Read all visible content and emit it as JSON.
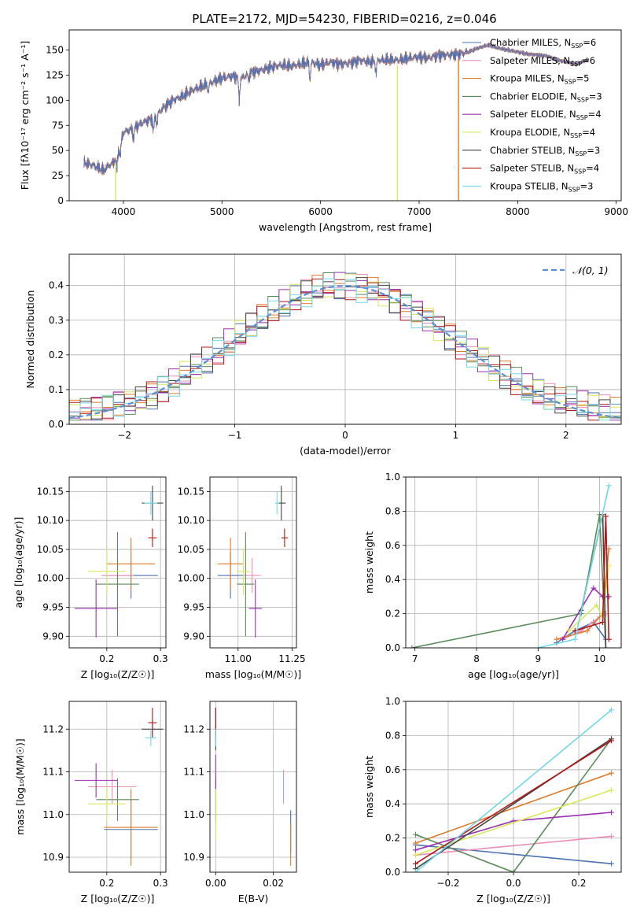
{
  "figure_title": "PLATE=2172, MJD=54230, FIBERID=0216, z=0.046",
  "colors": {
    "Chabrier MILES": "#4c72b0",
    "Salpeter MILES": "#e88fb8",
    "Kroupa MILES": "#e07b2a",
    "Chabrier ELODIE": "#5a8a5a",
    "Salpeter ELODIE": "#9b30b0",
    "Kroupa ELODIE": "#d8e85a",
    "Chabrier STELIB": "#444444",
    "Salpeter STELIB": "#b01818",
    "Kroupa STELIB": "#70d8e8",
    "gaussian": "#5b8fd6"
  },
  "chart_data": [
    {
      "id": "spectrum",
      "type": "line",
      "title": "PLATE=2172, MJD=54230, FIBERID=0216, z=0.046",
      "xlabel": "wavelength [Angstrom, rest frame]",
      "ylabel": "Flux [fλ10⁻¹⁷ erg cm⁻² s⁻¹ A⁻¹]",
      "xlim": [
        3450,
        9050
      ],
      "ylim": [
        0,
        170
      ],
      "xticks": [
        4000,
        5000,
        6000,
        7000,
        8000,
        9000
      ],
      "yticks": [
        0,
        25,
        50,
        75,
        100,
        125,
        150
      ],
      "legend_position": "top-right",
      "legend": [
        "Chabrier MILES, N_SSP=6",
        "Salpeter MILES, N_SSP=6",
        "Kroupa MILES, N_SSP=5",
        "Chabrier ELODIE, N_SSP=3",
        "Salpeter ELODIE, N_SSP=4",
        "Kroupa ELODIE, N_SSP=4",
        "Chabrier STELIB, N_SSP=3",
        "Salpeter STELIB, N_SSP=4",
        "Kroupa STELIB, N_SSP=3"
      ],
      "continuum": [
        [
          3600,
          38
        ],
        [
          3700,
          35
        ],
        [
          3800,
          30
        ],
        [
          3850,
          35
        ],
        [
          3900,
          38
        ],
        [
          3950,
          50
        ],
        [
          4000,
          68
        ],
        [
          4100,
          72
        ],
        [
          4200,
          78
        ],
        [
          4300,
          82
        ],
        [
          4400,
          92
        ],
        [
          4500,
          100
        ],
        [
          4600,
          104
        ],
        [
          4700,
          110
        ],
        [
          4800,
          114
        ],
        [
          4900,
          118
        ],
        [
          5000,
          122
        ],
        [
          5100,
          124
        ],
        [
          5200,
          122
        ],
        [
          5300,
          128
        ],
        [
          5400,
          130
        ],
        [
          5500,
          133
        ],
        [
          5600,
          135
        ],
        [
          5700,
          134
        ],
        [
          5800,
          136
        ],
        [
          5900,
          138
        ],
        [
          6000,
          135
        ],
        [
          6100,
          138
        ],
        [
          6200,
          136
        ],
        [
          6300,
          137
        ],
        [
          6400,
          140
        ],
        [
          6500,
          138
        ],
        [
          6600,
          140
        ],
        [
          6700,
          140
        ],
        [
          6800,
          140
        ],
        [
          6900,
          142
        ],
        [
          7000,
          143
        ],
        [
          7100,
          142
        ],
        [
          7200,
          145
        ],
        [
          7300,
          145
        ],
        [
          7400,
          146
        ],
        [
          7500,
          148
        ],
        [
          7600,
          152
        ],
        [
          7700,
          155
        ],
        [
          7800,
          152
        ],
        [
          7900,
          150
        ],
        [
          8000,
          148
        ],
        [
          8100,
          146
        ],
        [
          8200,
          145
        ],
        [
          8300,
          144
        ],
        [
          8400,
          140
        ],
        [
          8500,
          138
        ],
        [
          8600,
          136
        ],
        [
          8700,
          140
        ]
      ],
      "absorption": [
        [
          3934,
          14
        ],
        [
          3969,
          12
        ],
        [
          4102,
          10
        ],
        [
          4305,
          14
        ],
        [
          4340,
          10
        ],
        [
          4861,
          8
        ],
        [
          5175,
          22
        ],
        [
          5270,
          6
        ],
        [
          5893,
          18
        ],
        [
          6563,
          12
        ]
      ],
      "dropouts": [
        [
          3920,
          "Kroupa ELODIE"
        ],
        [
          6780,
          "Kroupa ELODIE"
        ],
        [
          7400,
          "Kroupa MILES"
        ]
      ]
    },
    {
      "id": "residuals",
      "type": "histogram",
      "xlabel": "(data-model)/error",
      "ylabel": "Normed distribution",
      "xlim": [
        -2.5,
        2.5
      ],
      "ylim": [
        0,
        0.49
      ],
      "xticks": [
        -2,
        -1,
        0,
        1,
        2
      ],
      "yticks": [
        0.0,
        0.1,
        0.2,
        0.3,
        0.4
      ],
      "bin_width": 0.1,
      "legend": [
        "𝒩(0, 1)"
      ],
      "legend_position": "top-right",
      "grid": true
    },
    {
      "id": "age-vs-Z",
      "type": "scatter",
      "xlabel": "Z [log₁₀(Z/Z☉)]",
      "ylabel": "age  [log₁₀(age/yr)]",
      "xlim": [
        0.13,
        0.31
      ],
      "ylim": [
        9.88,
        10.175
      ],
      "xticks": [
        0.2,
        0.3
      ],
      "ytick_labels": [
        "9.90",
        "9.95",
        "10.00",
        "10.05",
        "10.10",
        "10.15"
      ],
      "grid": true,
      "points": [
        {
          "model": "Chabrier MILES",
          "x": 0.245,
          "y": 10.005,
          "xerr": 0.05,
          "yerr": 0.04
        },
        {
          "model": "Salpeter MILES",
          "x": 0.22,
          "y": 10.005,
          "xerr": 0.03,
          "yerr": 0.03
        },
        {
          "model": "Kroupa MILES",
          "x": 0.245,
          "y": 10.025,
          "xerr": 0.045,
          "yerr": 0.045
        },
        {
          "model": "Chabrier ELODIE",
          "x": 0.22,
          "y": 9.99,
          "xerr": 0.04,
          "yerr": 0.09
        },
        {
          "model": "Salpeter ELODIE",
          "x": 0.18,
          "y": 9.948,
          "xerr": 0.04,
          "yerr": 0.05
        },
        {
          "model": "Kroupa ELODIE",
          "x": 0.2,
          "y": 10.012,
          "xerr": 0.035,
          "yerr": 0.04
        },
        {
          "model": "Chabrier STELIB",
          "x": 0.285,
          "y": 10.13,
          "xerr": 0.02,
          "yerr": 0.03
        },
        {
          "model": "Salpeter STELIB",
          "x": 0.285,
          "y": 10.07,
          "xerr": 0.008,
          "yerr": 0.016
        },
        {
          "model": "Kroupa STELIB",
          "x": 0.282,
          "y": 10.13,
          "xerr": 0.012,
          "yerr": 0.02
        }
      ]
    },
    {
      "id": "age-vs-mass",
      "type": "scatter",
      "xlabel": "mass [log₁₀(M/M☉)]",
      "xlim": [
        10.87,
        11.27
      ],
      "ylim": [
        9.88,
        10.175
      ],
      "xticks": [
        11.0,
        11.25
      ],
      "xtick_labels": [
        "11.00",
        "11.25"
      ],
      "ytick_labels": [
        "9.90",
        "9.95",
        "10.00",
        "10.05",
        "10.10",
        "10.15"
      ],
      "grid": true,
      "points": [
        {
          "model": "Chabrier MILES",
          "x": 10.965,
          "y": 10.005,
          "xerr": 0.06,
          "yerr": 0.04
        },
        {
          "model": "Salpeter MILES",
          "x": 11.065,
          "y": 10.005,
          "xerr": 0.04,
          "yerr": 0.03
        },
        {
          "model": "Kroupa MILES",
          "x": 10.965,
          "y": 10.025,
          "xerr": 0.06,
          "yerr": 0.045
        },
        {
          "model": "Chabrier ELODIE",
          "x": 11.035,
          "y": 9.99,
          "xerr": 0.04,
          "yerr": 0.09
        },
        {
          "model": "Salpeter ELODIE",
          "x": 11.08,
          "y": 9.948,
          "xerr": 0.03,
          "yerr": 0.05
        },
        {
          "model": "Kroupa ELODIE",
          "x": 11.025,
          "y": 10.012,
          "xerr": 0.03,
          "yerr": 0.04
        },
        {
          "model": "Chabrier STELIB",
          "x": 11.2,
          "y": 10.13,
          "xerr": 0.02,
          "yerr": 0.03
        },
        {
          "model": "Salpeter STELIB",
          "x": 11.215,
          "y": 10.07,
          "xerr": 0.015,
          "yerr": 0.016
        },
        {
          "model": "Kroupa STELIB",
          "x": 11.18,
          "y": 10.13,
          "xerr": 0.01,
          "yerr": 0.02
        }
      ]
    },
    {
      "id": "mass-weight-vs-age",
      "type": "line",
      "xlabel": "age  [log₁₀(age/yr)]",
      "ylabel": "mass weight",
      "xlim": [
        6.85,
        10.35
      ],
      "ylim": [
        0,
        1.0
      ],
      "xticks": [
        7,
        8,
        9,
        10
      ],
      "yticks": [
        0.0,
        0.2,
        0.4,
        0.6,
        0.8,
        1.0
      ],
      "grid": true,
      "series": [
        {
          "model": "Chabrier ELODIE",
          "x": [
            6.95,
            9.7,
            10.0,
            10.1
          ],
          "y": [
            0.0,
            0.2,
            0.78,
            0.0
          ]
        },
        {
          "model": "Chabrier MILES",
          "x": [
            9.3,
            9.6,
            9.9,
            10.1
          ],
          "y": [
            0.03,
            0.1,
            0.15,
            0.05
          ]
        },
        {
          "model": "Salpeter MILES",
          "x": [
            9.4,
            9.7,
            10.0,
            10.1
          ],
          "y": [
            0.05,
            0.1,
            0.18,
            0.2
          ]
        },
        {
          "model": "Kroupa MILES",
          "x": [
            9.3,
            9.8,
            10.05,
            10.15
          ],
          "y": [
            0.05,
            0.1,
            0.2,
            0.58
          ]
        },
        {
          "model": "Salpeter ELODIE",
          "x": [
            9.4,
            9.9,
            10.05,
            10.15
          ],
          "y": [
            0.05,
            0.35,
            0.3,
            0.3
          ]
        },
        {
          "model": "Kroupa ELODIE",
          "x": [
            9.5,
            9.95,
            10.05,
            10.15
          ],
          "y": [
            0.1,
            0.25,
            0.18,
            0.48
          ]
        },
        {
          "model": "Chabrier STELIB",
          "x": [
            9.7,
            10.05,
            10.1
          ],
          "y": [
            0.22,
            0.78,
            0.0
          ]
        },
        {
          "model": "Salpeter STELIB",
          "x": [
            9.6,
            10.05,
            10.1,
            10.15
          ],
          "y": [
            0.1,
            0.15,
            0.77,
            0.05
          ]
        },
        {
          "model": "Kroupa STELIB",
          "x": [
            9.0,
            9.6,
            10.15
          ],
          "y": [
            0.0,
            0.05,
            0.95
          ]
        }
      ]
    },
    {
      "id": "mass-vs-Z",
      "type": "scatter",
      "xlabel": "Z [log₁₀(Z/Z☉)]",
      "ylabel": "mass [log₁₀(M/M☉)]",
      "xlim": [
        0.13,
        0.31
      ],
      "ylim": [
        10.865,
        11.265
      ],
      "xticks": [
        0.2,
        0.3
      ],
      "yticks": [
        10.9,
        11.0,
        11.1,
        11.2
      ],
      "grid": true,
      "points": [
        {
          "model": "Chabrier MILES",
          "x": 0.245,
          "y": 10.965,
          "xerr": 0.05,
          "yerr": 0.07
        },
        {
          "model": "Salpeter MILES",
          "x": 0.21,
          "y": 11.065,
          "xerr": 0.045,
          "yerr": 0.04
        },
        {
          "model": "Kroupa MILES",
          "x": 0.245,
          "y": 10.97,
          "xerr": 0.05,
          "yerr": 0.09
        },
        {
          "model": "Chabrier ELODIE",
          "x": 0.22,
          "y": 11.035,
          "xerr": 0.04,
          "yerr": 0.05
        },
        {
          "model": "Salpeter ELODIE",
          "x": 0.18,
          "y": 11.08,
          "xerr": 0.04,
          "yerr": 0.04
        },
        {
          "model": "Kroupa ELODIE",
          "x": 0.2,
          "y": 11.025,
          "xerr": 0.035,
          "yerr": 0.04
        },
        {
          "model": "Chabrier STELIB",
          "x": 0.285,
          "y": 11.2,
          "xerr": 0.02,
          "yerr": 0.02
        },
        {
          "model": "Salpeter STELIB",
          "x": 0.285,
          "y": 11.215,
          "xerr": 0.008,
          "yerr": 0.035
        },
        {
          "model": "Kroupa STELIB",
          "x": 0.282,
          "y": 11.18,
          "xerr": 0.01,
          "yerr": 0.02
        }
      ]
    },
    {
      "id": "mass-vs-EBV",
      "type": "scatter",
      "xlabel": "E(B-V)",
      "xlim": [
        -0.002,
        0.028
      ],
      "ylim": [
        10.865,
        11.265
      ],
      "xticks": [
        0.0,
        0.02
      ],
      "xtick_labels": [
        "0.00",
        "0.02"
      ],
      "yticks": [
        10.9,
        11.0,
        11.1,
        11.2
      ],
      "grid": true,
      "points": [
        {
          "model": "Chabrier MILES",
          "x": 0.026,
          "y": 10.96,
          "yerr": 0.05
        },
        {
          "model": "Salpeter MILES",
          "x": 0.0235,
          "y": 11.065,
          "yerr": 0.04
        },
        {
          "model": "Kroupa MILES",
          "x": 0.026,
          "y": 10.93,
          "yerr": 0.05
        },
        {
          "model": "Chabrier ELODIE",
          "x": 0.0,
          "y": 11.035,
          "yerr": 0.05
        },
        {
          "model": "Salpeter ELODIE",
          "x": 0.0,
          "y": 11.1,
          "yerr": 0.04
        },
        {
          "model": "Kroupa ELODIE",
          "x": 0.0,
          "y": 11.0,
          "yerr": 0.06
        },
        {
          "model": "Chabrier STELIB",
          "x": 0.0,
          "y": 11.2,
          "yerr": 0.05
        },
        {
          "model": "Salpeter STELIB",
          "x": 0.0,
          "y": 11.215,
          "yerr": 0.035
        },
        {
          "model": "Kroupa STELIB",
          "x": 0.0,
          "y": 11.18,
          "yerr": 0.02
        }
      ]
    },
    {
      "id": "mass-weight-vs-Z",
      "type": "line",
      "xlabel": "Z [log₁₀(Z/Z☉)]",
      "ylabel": "mass weight",
      "xlim": [
        -0.33,
        0.33
      ],
      "ylim": [
        0,
        1.0
      ],
      "xticks": [
        -0.2,
        0.0,
        0.2
      ],
      "yticks": [
        0.0,
        0.2,
        0.4,
        0.6,
        0.8,
        1.0
      ],
      "grid": true,
      "series": [
        {
          "model": "Chabrier MILES",
          "x": [
            -0.3,
            0.3
          ],
          "y": [
            0.16,
            0.05
          ]
        },
        {
          "model": "Salpeter MILES",
          "x": [
            -0.3,
            0.3
          ],
          "y": [
            0.1,
            0.21
          ]
        },
        {
          "model": "Kroupa MILES",
          "x": [
            -0.3,
            0.3
          ],
          "y": [
            0.17,
            0.58
          ]
        },
        {
          "model": "Chabrier ELODIE",
          "x": [
            -0.3,
            0.0,
            0.3
          ],
          "y": [
            0.22,
            0.0,
            0.78
          ]
        },
        {
          "model": "Salpeter ELODIE",
          "x": [
            -0.3,
            0.0,
            0.3
          ],
          "y": [
            0.13,
            0.3,
            0.35
          ]
        },
        {
          "model": "Kroupa ELODIE",
          "x": [
            -0.3,
            0.3
          ],
          "y": [
            0.1,
            0.48
          ]
        },
        {
          "model": "Chabrier STELIB",
          "x": [
            -0.3,
            0.3
          ],
          "y": [
            0.02,
            0.78
          ]
        },
        {
          "model": "Salpeter STELIB",
          "x": [
            -0.3,
            0.3
          ],
          "y": [
            0.05,
            0.77
          ]
        },
        {
          "model": "Kroupa STELIB",
          "x": [
            -0.3,
            0.3
          ],
          "y": [
            0.0,
            0.95
          ]
        }
      ]
    }
  ]
}
